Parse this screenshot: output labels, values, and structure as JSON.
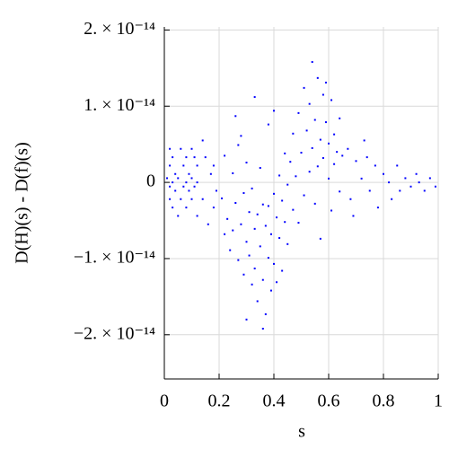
{
  "chart_data": {
    "type": "scatter",
    "xlabel": "s",
    "ylabel": "D(H)(s) - D(f)(s)",
    "xlim": [
      0,
      1
    ],
    "ylim": [
      -2.58e-14,
      2.04e-14
    ],
    "xticks": [
      0,
      0.2,
      0.4,
      0.6,
      0.8,
      1
    ],
    "yticks": [
      {
        "value": -2e-14,
        "label": "−2. × 10⁻¹⁴"
      },
      {
        "value": -1e-14,
        "label": "−1. × 10⁻¹⁴"
      },
      0,
      {
        "value": 1e-14,
        "label": "1. × 10⁻¹⁴"
      },
      {
        "value": 2e-14,
        "label": "2. × 10⁻¹⁴"
      }
    ],
    "grid": true,
    "color": "#0000ff",
    "x": [
      0.02,
      0.06,
      0.1,
      0.03,
      0.08,
      0.11,
      0.02,
      0.07,
      0.12,
      0.04,
      0.09,
      0.01,
      0.05,
      0.1,
      0.03,
      0.08,
      0.12,
      0.02,
      0.07,
      0.11,
      0.04,
      0.09,
      0.02,
      0.06,
      0.1,
      0.03,
      0.08,
      0.05,
      0.12,
      0.14,
      0.16,
      0.15,
      0.18,
      0.17,
      0.19,
      0.14,
      0.18,
      0.21,
      0.22,
      0.23,
      0.24,
      0.25,
      0.25,
      0.26,
      0.27,
      0.27,
      0.28,
      0.29,
      0.29,
      0.3,
      0.3,
      0.31,
      0.31,
      0.32,
      0.32,
      0.33,
      0.33,
      0.34,
      0.34,
      0.35,
      0.35,
      0.36,
      0.36,
      0.37,
      0.37,
      0.38,
      0.38,
      0.39,
      0.39,
      0.4,
      0.4,
      0.41,
      0.41,
      0.42,
      0.42,
      0.43,
      0.43,
      0.44,
      0.44,
      0.45,
      0.45,
      0.26,
      0.33,
      0.38,
      0.4,
      0.3,
      0.36,
      0.22,
      0.28,
      0.46,
      0.47,
      0.47,
      0.48,
      0.49,
      0.49,
      0.5,
      0.51,
      0.51,
      0.52,
      0.53,
      0.53,
      0.54,
      0.55,
      0.55,
      0.56,
      0.56,
      0.57,
      0.57,
      0.58,
      0.58,
      0.59,
      0.6,
      0.6,
      0.61,
      0.61,
      0.62,
      0.62,
      0.63,
      0.64,
      0.64,
      0.65,
      0.59,
      0.54,
      0.67,
      0.68,
      0.7,
      0.72,
      0.74,
      0.75,
      0.77,
      0.78,
      0.8,
      0.82,
      0.83,
      0.85,
      0.86,
      0.88,
      0.9,
      0.92,
      0.93,
      0.95,
      0.97,
      0.99,
      0.69,
      0.73
    ],
    "values": [
      4.4e-15,
      4.4e-15,
      4.4e-15,
      3.3e-15,
      3.3e-15,
      3.3e-15,
      2.2e-15,
      2.2e-15,
      2.2e-15,
      1.1e-15,
      1.1e-15,
      5.5e-16,
      5.5e-16,
      5.5e-16,
      0,
      0,
      0,
      -5.5e-16,
      -5.5e-16,
      -5.5e-16,
      -1.1e-15,
      -1.1e-15,
      -2.2e-15,
      -2.2e-15,
      -2.2e-15,
      -3.3e-15,
      -3.3e-15,
      -4.4e-15,
      -4.4e-15,
      5.5e-15,
      -5.5e-15,
      3.3e-15,
      -3.3e-15,
      1.1e-15,
      -1.1e-15,
      -2.2e-15,
      2.2e-15,
      -2.1e-15,
      3.5e-15,
      -4.8e-15,
      -8.9e-15,
      1.2e-15,
      -6.3e-15,
      -2.7e-15,
      -1.02e-14,
      4.9e-15,
      -5.5e-15,
      -1.4e-15,
      -1.21e-14,
      -7.8e-15,
      2.6e-15,
      -3.9e-15,
      -9.6e-15,
      -1.34e-14,
      -8e-16,
      -6.1e-15,
      -1.13e-14,
      -4.2e-15,
      -1.56e-14,
      -8.4e-15,
      1.9e-15,
      -2.9e-15,
      -1.28e-14,
      -5.7e-15,
      -1.73e-14,
      -9.9e-15,
      -3.1e-15,
      -1.42e-14,
      -6.8e-15,
      -1.5e-15,
      -1.07e-14,
      -4.6e-15,
      -1.31e-14,
      -7.3e-15,
      9e-16,
      -2.4e-15,
      -1.16e-14,
      -5.2e-15,
      3.8e-15,
      -8.1e-15,
      -3e-16,
      8.7e-15,
      1.12e-14,
      7.6e-15,
      9.4e-15,
      -1.8e-14,
      -1.92e-14,
      -6.8e-15,
      6.1e-15,
      2.7e-15,
      -3.6e-15,
      6.4e-15,
      8e-16,
      9.1e-15,
      -5.3e-15,
      3.9e-15,
      1.24e-14,
      -1.7e-15,
      6.8e-15,
      1.4e-15,
      1.03e-14,
      4.5e-15,
      -2.8e-15,
      8.2e-15,
      1.37e-14,
      2.1e-15,
      5.6e-15,
      -7.4e-15,
      1.15e-14,
      3.2e-15,
      7.9e-15,
      5e-16,
      5.1e-15,
      1.08e-14,
      -3.7e-15,
      6.3e-15,
      2.4e-15,
      4e-15,
      -1.2e-15,
      8.4e-15,
      3.5e-15,
      1.31e-14,
      1.58e-14,
      4.4e-15,
      -2.2e-15,
      2.8e-15,
      5e-16,
      3.3e-15,
      -1.1e-15,
      2.2e-15,
      -3.3e-15,
      1.1e-15,
      0,
      -2.2e-15,
      2.2e-15,
      -1.1e-15,
      5.5e-16,
      -5.5e-16,
      1.1e-15,
      0,
      -1.1e-15,
      5.5e-16,
      -5.5e-16,
      -4.4e-15,
      5.5e-15
    ]
  }
}
